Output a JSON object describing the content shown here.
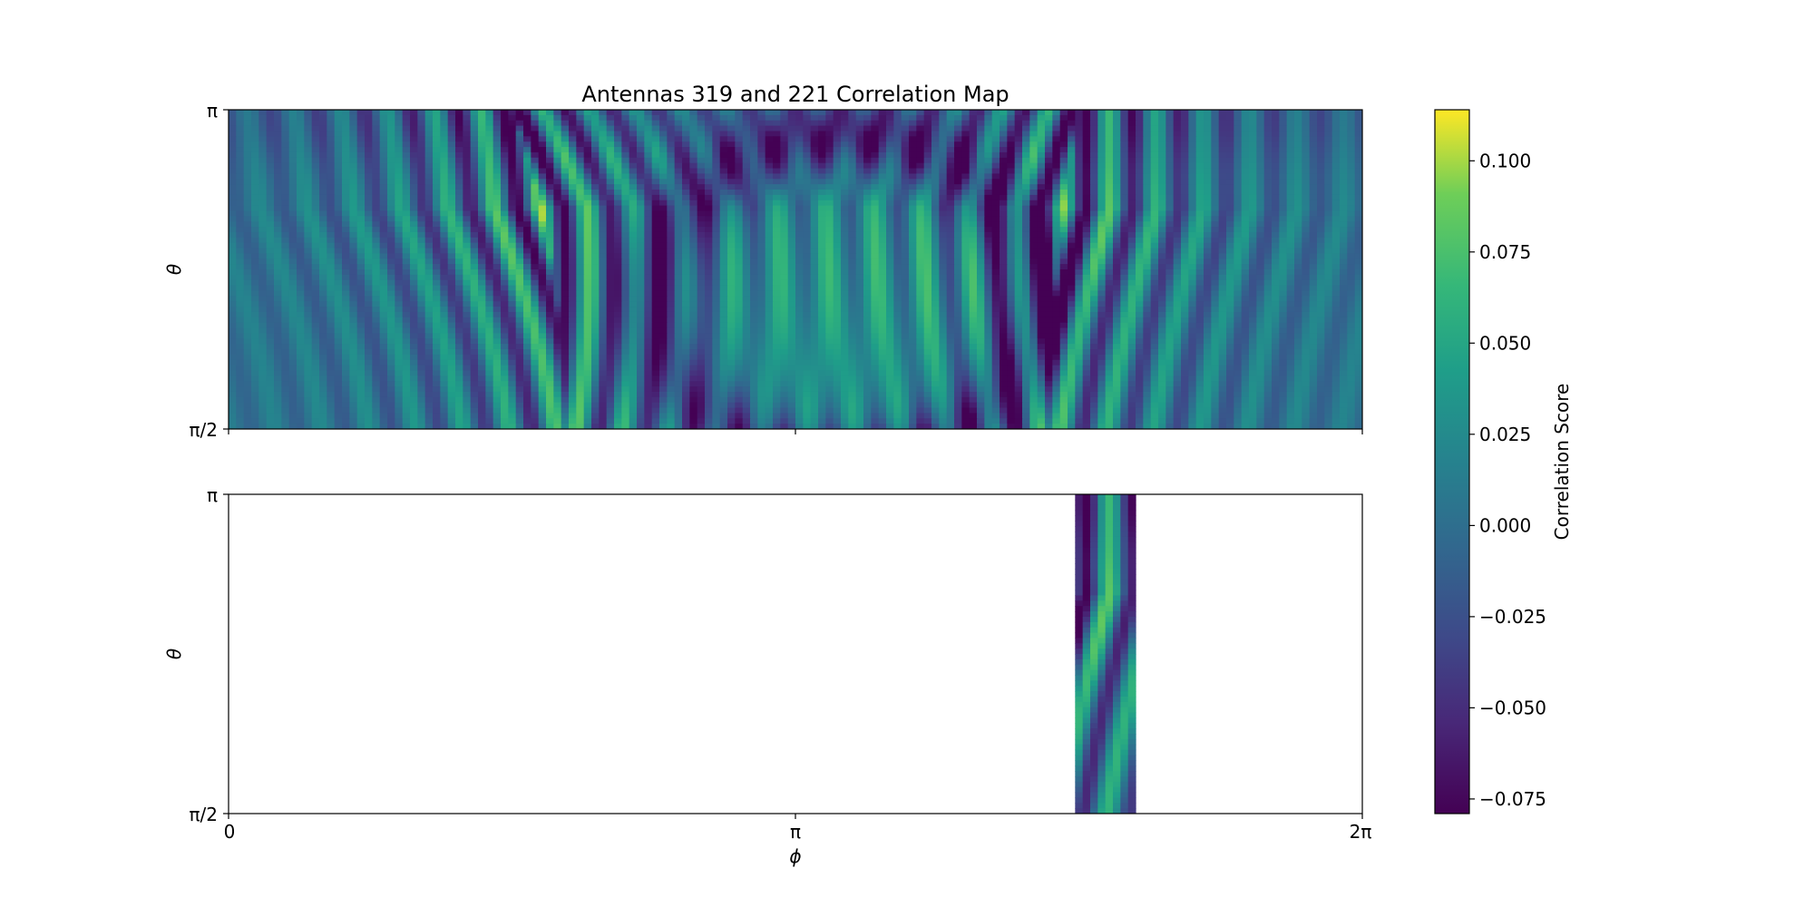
{
  "chart_data": [
    {
      "type": "heatmap",
      "title": "Antennas 319 and 221 Correlation Map",
      "xlabel": "",
      "ylabel": "θ",
      "x_range": [
        0,
        6.2832
      ],
      "y_range": [
        1.5708,
        3.1416
      ],
      "x_ticks": [
        "",
        "",
        ""
      ],
      "y_ticks": [
        "π",
        "π/2"
      ],
      "colormap": "viridis",
      "value_range": [
        -0.078,
        0.113
      ],
      "features": [
        {
          "shape": "arc",
          "phi_center": 1.57,
          "phi_at_theta_low": 1.87,
          "theta_peak": 2.66,
          "peak_value": 0.113
        },
        {
          "shape": "arc",
          "phi_center": 4.71,
          "phi_at_theta_low": 4.55,
          "theta_peak": 2.66,
          "peak_value": 0.113
        },
        {
          "shape": "basin",
          "phi_center": 3.42,
          "theta_center": 2.1,
          "value": 0.03
        }
      ]
    },
    {
      "type": "heatmap",
      "title": "",
      "xlabel": "ϕ",
      "ylabel": "θ",
      "x_range": [
        0,
        6.2832
      ],
      "y_range": [
        1.5708,
        3.1416
      ],
      "x_ticks": [
        "0",
        "π",
        "2π"
      ],
      "y_ticks": [
        "π",
        "π/2"
      ],
      "colormap": "viridis",
      "visible_phi_window": [
        4.69,
        5.04
      ],
      "value_range": [
        -0.078,
        0.113
      ]
    }
  ],
  "colorbar": {
    "label": "Correlation Score",
    "min": -0.079,
    "max": 0.114,
    "ticks": [
      0.1,
      0.075,
      0.05,
      0.025,
      0.0,
      -0.025,
      -0.05,
      -0.075
    ],
    "tick_labels": [
      "0.100",
      "0.075",
      "0.050",
      "0.025",
      "0.000",
      "−0.025",
      "−0.050",
      "−0.075"
    ]
  }
}
